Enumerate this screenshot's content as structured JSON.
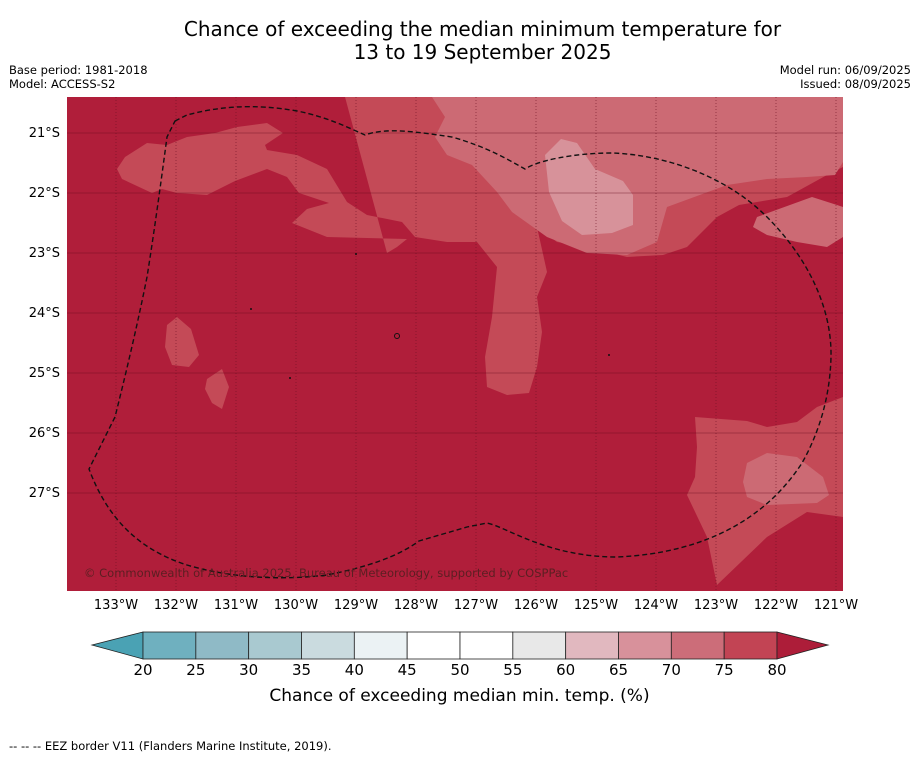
{
  "title": {
    "line1": "Chance of exceeding the median minimum temperature for",
    "line2": "13 to 19 September 2025"
  },
  "meta_left": {
    "base_period": "Base period: 1981-2018",
    "model": "Model: ACCESS-S2"
  },
  "meta_right": {
    "model_run": "Model run: 06/09/2025",
    "issued": "Issued: 08/09/2025"
  },
  "map": {
    "lat_labels": [
      "21°S",
      "22°S",
      "23°S",
      "24°S",
      "25°S",
      "26°S",
      "27°S"
    ],
    "lon_labels": [
      "133°W",
      "132°W",
      "131°W",
      "130°W",
      "129°W",
      "128°W",
      "127°W",
      "126°W",
      "125°W",
      "124°W",
      "123°W",
      "122°W",
      "121°W"
    ],
    "credit": "© Commonwealth of Australia 2025, Bureau of Meteorology, supported by COSPPac",
    "colors": {
      "over80": "#b01e3a",
      "c75_80": "#c44a57",
      "c70_75": "#cc6a74",
      "c65_70": "#d7929a"
    }
  },
  "colorbar": {
    "ticks": [
      "20",
      "25",
      "30",
      "35",
      "40",
      "45",
      "50",
      "55",
      "60",
      "65",
      "70",
      "75",
      "80"
    ],
    "colors": [
      "#6fb0bf",
      "#8fbac6",
      "#a9c9d0",
      "#cadbdf",
      "#ebf2f4",
      "#ffffff",
      "#ffffff",
      "#e8e8e8",
      "#e1b8bf",
      "#d8919b",
      "#cc6d79",
      "#c24454"
    ],
    "under_color": "#4aa2b4",
    "over_color": "#ad1d39",
    "label": "Chance of exceeding median min. temp. (%)"
  },
  "footnote": "--  --  -- EEZ border V11 (Flanders Marine Institute, 2019)."
}
